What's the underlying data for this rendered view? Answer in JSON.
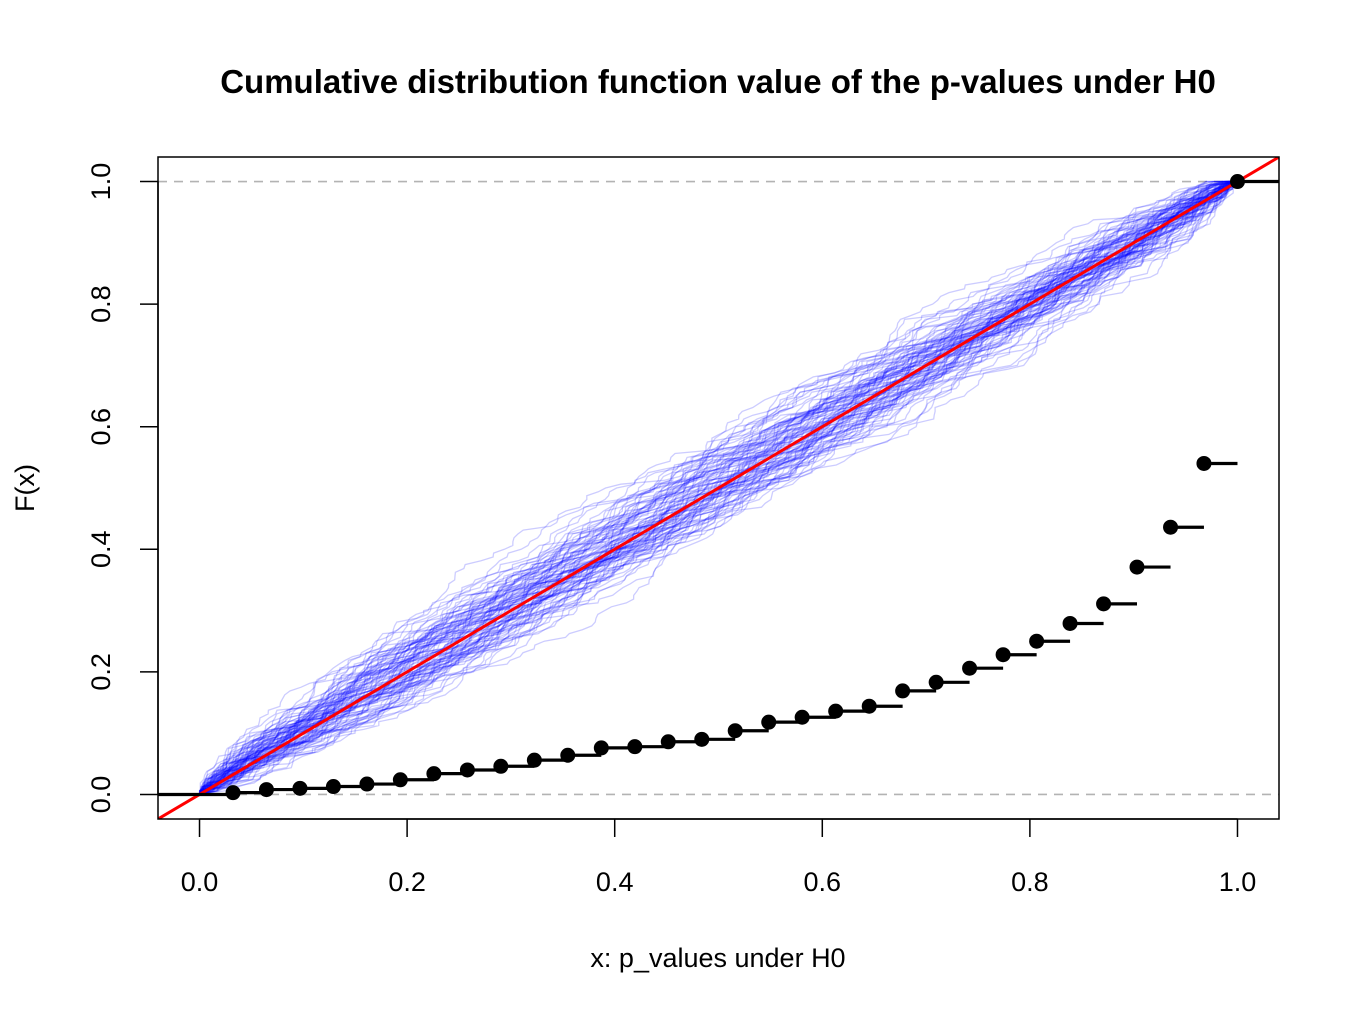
{
  "chart_data": {
    "type": "line",
    "title": "Cumulative distribution function value of the p-values under H0",
    "xlabel": "x: p_values under H0",
    "ylabel": "F(x)",
    "xlim": [
      -0.04,
      1.04
    ],
    "ylim": [
      -0.04,
      1.04
    ],
    "x_ticks": [
      "0.0",
      "0.2",
      "0.4",
      "0.6",
      "0.8",
      "1.0"
    ],
    "y_ticks": [
      "0.0",
      "0.2",
      "0.4",
      "0.6",
      "0.8",
      "1.0"
    ],
    "grid": false,
    "legend": "none",
    "reference_lines": {
      "y": [
        0,
        1
      ],
      "style": "dashed",
      "color": "#b3b3b3"
    },
    "diagonal": {
      "from": [
        0,
        0
      ],
      "to": [
        1,
        1
      ],
      "color": "#ff0000"
    },
    "simulated_ecdfs": {
      "count": 100,
      "color": "#0000ff",
      "opacity": 0.2
    },
    "series": [
      {
        "kind": "step",
        "color": "#000000",
        "x": [
          0.0323,
          0.0645,
          0.0968,
          0.129,
          0.1613,
          0.1935,
          0.2258,
          0.2581,
          0.2903,
          0.3226,
          0.3548,
          0.3871,
          0.4194,
          0.4516,
          0.4839,
          0.5161,
          0.5484,
          0.5806,
          0.6129,
          0.6452,
          0.6774,
          0.7097,
          0.7419,
          0.7742,
          0.8065,
          0.8387,
          0.871,
          0.9032,
          0.9355,
          0.9677,
          1.0
        ],
        "y": [
          0.003,
          0.008,
          0.01,
          0.013,
          0.017,
          0.024,
          0.034,
          0.04,
          0.046,
          0.056,
          0.064,
          0.076,
          0.078,
          0.086,
          0.09,
          0.104,
          0.118,
          0.126,
          0.136,
          0.144,
          0.169,
          0.183,
          0.206,
          0.228,
          0.25,
          0.279,
          0.311,
          0.371,
          0.436,
          0.54,
          1.0
        ]
      }
    ]
  }
}
